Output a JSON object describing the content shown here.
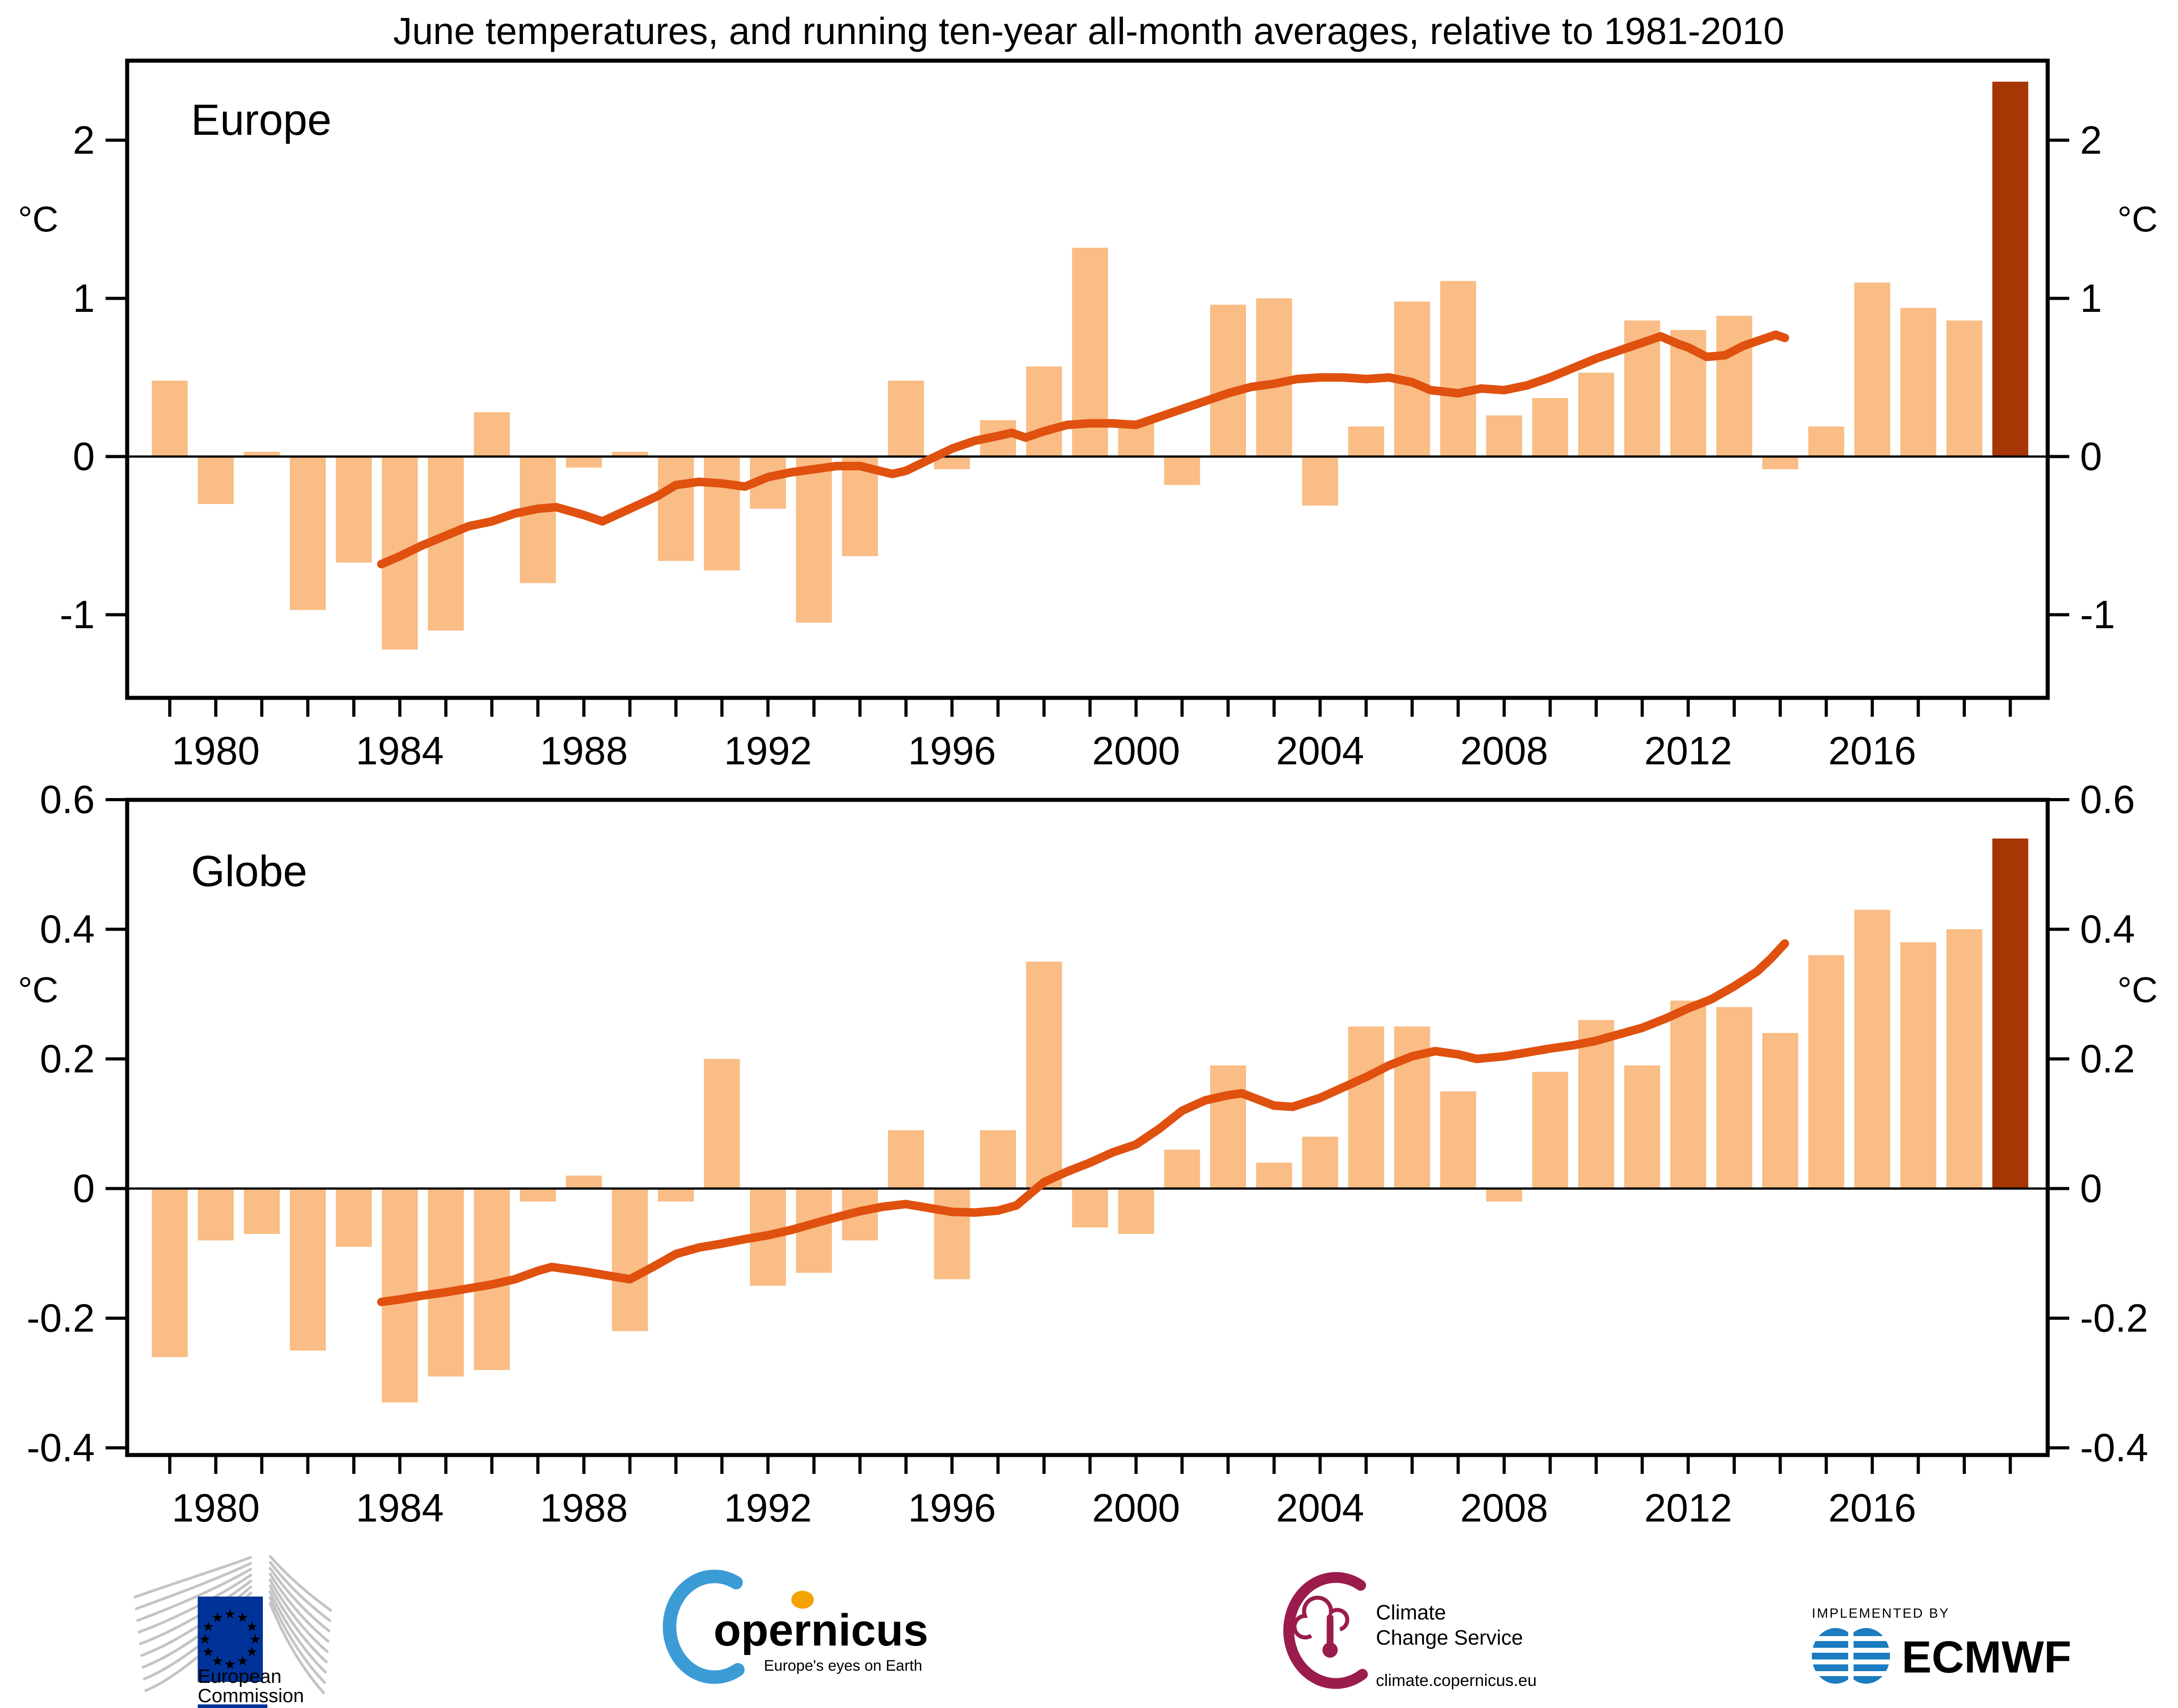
{
  "title": "June temperatures, and running ten-year all-month averages, relative to 1981-2010",
  "unit_label": "°C",
  "colors": {
    "bar": "#F9BD85",
    "running_mean_line": "#E0500F",
    "highlight_bar": "#A63604",
    "axis": "#000000",
    "ec_blue": "#003399",
    "star_yellow": "#FFCC00",
    "ec_gray": "#C4C4C4",
    "copernicus_blue": "#3B9BD5",
    "copernicus_navy": "#17375E",
    "copernicus_orange": "#F5A300",
    "ccs_maroon": "#9B1C4C",
    "ccs_gray": "#9E9E9E",
    "ecmwf_blue": "#1B7CC0"
  },
  "footer": {
    "ec": {
      "line1": "European",
      "line2": "Commission"
    },
    "copernicus": {
      "wordmark": "opernicus",
      "tagline": "Europe's eyes on Earth"
    },
    "ccs": {
      "line1": "Climate",
      "line2": "Change Service",
      "url": "climate.copernicus.eu"
    },
    "ecmwf": {
      "kicker": "IMPLEMENTED BY",
      "brand": "ECMWF"
    }
  },
  "chart_data": [
    {
      "type": "bar",
      "region": "Europe",
      "ylabel": "°C",
      "grid": false,
      "ylim": [
        -1.525,
        2.5
      ],
      "yticks": [
        2,
        1,
        0,
        -1
      ],
      "ytick_labels": [
        "2",
        "1",
        "0",
        "-1"
      ],
      "xtick_labeled_years": [
        1980,
        1984,
        1988,
        1992,
        1996,
        2000,
        2004,
        2008,
        2012,
        2016
      ],
      "years": [
        1979,
        1980,
        1981,
        1982,
        1983,
        1984,
        1985,
        1986,
        1987,
        1988,
        1989,
        1990,
        1991,
        1992,
        1993,
        1994,
        1995,
        1996,
        1997,
        1998,
        1999,
        2000,
        2001,
        2002,
        2003,
        2004,
        2005,
        2006,
        2007,
        2008,
        2009,
        2010,
        2011,
        2012,
        2013,
        2014,
        2015,
        2016,
        2017,
        2018,
        2019
      ],
      "values": [
        0.48,
        -0.3,
        0.03,
        -0.97,
        -0.67,
        -1.22,
        -1.1,
        0.28,
        -0.8,
        -0.07,
        0.03,
        -0.66,
        -0.72,
        -0.33,
        -1.05,
        -0.63,
        0.48,
        -0.08,
        0.23,
        0.57,
        1.32,
        0.23,
        -0.18,
        0.96,
        1.0,
        -0.31,
        0.19,
        0.98,
        1.11,
        0.26,
        0.37,
        0.53,
        0.86,
        0.8,
        0.89,
        -0.08,
        0.19,
        1.1,
        0.94,
        0.86,
        2.37
      ],
      "highlight_year": 2019,
      "running_mean": [
        [
          1983.6,
          -0.68
        ],
        [
          1984.0,
          -0.63
        ],
        [
          1984.5,
          -0.56
        ],
        [
          1985.0,
          -0.5
        ],
        [
          1985.5,
          -0.44
        ],
        [
          1986.0,
          -0.41
        ],
        [
          1986.5,
          -0.36
        ],
        [
          1987.0,
          -0.33
        ],
        [
          1987.4,
          -0.32
        ],
        [
          1988.0,
          -0.37
        ],
        [
          1988.4,
          -0.41
        ],
        [
          1989.0,
          -0.33
        ],
        [
          1989.6,
          -0.25
        ],
        [
          1990.0,
          -0.18
        ],
        [
          1990.5,
          -0.16
        ],
        [
          1991.0,
          -0.17
        ],
        [
          1991.5,
          -0.19
        ],
        [
          1992.0,
          -0.13
        ],
        [
          1992.5,
          -0.1
        ],
        [
          1993.0,
          -0.08
        ],
        [
          1993.5,
          -0.06
        ],
        [
          1994.0,
          -0.06
        ],
        [
          1994.7,
          -0.11
        ],
        [
          1995.0,
          -0.09
        ],
        [
          1995.5,
          -0.02
        ],
        [
          1996.0,
          0.05
        ],
        [
          1996.5,
          0.1
        ],
        [
          1997.0,
          0.13
        ],
        [
          1997.3,
          0.15
        ],
        [
          1997.6,
          0.12
        ],
        [
          1998.0,
          0.16
        ],
        [
          1998.5,
          0.2
        ],
        [
          1999.0,
          0.21
        ],
        [
          1999.5,
          0.21
        ],
        [
          2000.0,
          0.2
        ],
        [
          2000.5,
          0.25
        ],
        [
          2001.0,
          0.3
        ],
        [
          2001.5,
          0.35
        ],
        [
          2002.0,
          0.4
        ],
        [
          2002.5,
          0.44
        ],
        [
          2003.0,
          0.46
        ],
        [
          2003.5,
          0.49
        ],
        [
          2004.0,
          0.5
        ],
        [
          2004.5,
          0.5
        ],
        [
          2005.0,
          0.49
        ],
        [
          2005.5,
          0.5
        ],
        [
          2006.0,
          0.47
        ],
        [
          2006.4,
          0.42
        ],
        [
          2007.0,
          0.4
        ],
        [
          2007.5,
          0.43
        ],
        [
          2008.0,
          0.42
        ],
        [
          2008.5,
          0.45
        ],
        [
          2009.0,
          0.5
        ],
        [
          2009.5,
          0.56
        ],
        [
          2010.0,
          0.62
        ],
        [
          2010.5,
          0.67
        ],
        [
          2011.0,
          0.72
        ],
        [
          2011.4,
          0.76
        ],
        [
          2011.8,
          0.71
        ],
        [
          2012.0,
          0.69
        ],
        [
          2012.4,
          0.63
        ],
        [
          2012.8,
          0.64
        ],
        [
          2013.2,
          0.7
        ],
        [
          2013.6,
          0.74
        ],
        [
          2013.9,
          0.77
        ],
        [
          2014.1,
          0.75
        ]
      ]
    },
    {
      "type": "bar",
      "region": "Globe",
      "ylabel": "°C",
      "grid": false,
      "ylim": [
        -0.411,
        0.6
      ],
      "yticks": [
        0.6,
        0.4,
        0.2,
        0,
        -0.2,
        -0.4
      ],
      "ytick_labels": [
        "0.6",
        "0.4",
        "0.2",
        "0",
        "-0.2",
        "-0.4"
      ],
      "xtick_labeled_years": [
        1980,
        1984,
        1988,
        1992,
        1996,
        2000,
        2004,
        2008,
        2012,
        2016
      ],
      "years": [
        1979,
        1980,
        1981,
        1982,
        1983,
        1984,
        1985,
        1986,
        1987,
        1988,
        1989,
        1990,
        1991,
        1992,
        1993,
        1994,
        1995,
        1996,
        1997,
        1998,
        1999,
        2000,
        2001,
        2002,
        2003,
        2004,
        2005,
        2006,
        2007,
        2008,
        2009,
        2010,
        2011,
        2012,
        2013,
        2014,
        2015,
        2016,
        2017,
        2018,
        2019
      ],
      "values": [
        -0.26,
        -0.08,
        -0.07,
        -0.25,
        -0.09,
        -0.33,
        -0.29,
        -0.28,
        -0.02,
        0.02,
        -0.22,
        -0.02,
        0.2,
        -0.15,
        -0.13,
        -0.08,
        0.09,
        -0.14,
        0.09,
        0.35,
        -0.06,
        -0.07,
        0.06,
        0.19,
        0.04,
        0.08,
        0.25,
        0.25,
        0.15,
        -0.02,
        0.18,
        0.26,
        0.19,
        0.29,
        0.28,
        0.24,
        0.36,
        0.43,
        0.38,
        0.4,
        0.54
      ],
      "highlight_year": 2019,
      "running_mean": [
        [
          1983.6,
          -0.175
        ],
        [
          1984.0,
          -0.171
        ],
        [
          1984.5,
          -0.165
        ],
        [
          1985.0,
          -0.16
        ],
        [
          1985.5,
          -0.154
        ],
        [
          1986.0,
          -0.148
        ],
        [
          1986.5,
          -0.14
        ],
        [
          1987.0,
          -0.127
        ],
        [
          1987.3,
          -0.121
        ],
        [
          1988.0,
          -0.128
        ],
        [
          1988.5,
          -0.134
        ],
        [
          1989.0,
          -0.14
        ],
        [
          1989.5,
          -0.121
        ],
        [
          1990.0,
          -0.101
        ],
        [
          1990.5,
          -0.091
        ],
        [
          1991.0,
          -0.085
        ],
        [
          1991.5,
          -0.078
        ],
        [
          1992.0,
          -0.072
        ],
        [
          1992.5,
          -0.064
        ],
        [
          1993.0,
          -0.054
        ],
        [
          1993.5,
          -0.044
        ],
        [
          1994.0,
          -0.035
        ],
        [
          1994.5,
          -0.028
        ],
        [
          1995.0,
          -0.024
        ],
        [
          1995.5,
          -0.03
        ],
        [
          1996.0,
          -0.036
        ],
        [
          1996.5,
          -0.037
        ],
        [
          1997.0,
          -0.034
        ],
        [
          1997.4,
          -0.026
        ],
        [
          1998.0,
          0.01
        ],
        [
          1998.5,
          0.026
        ],
        [
          1999.0,
          0.04
        ],
        [
          1999.5,
          0.056
        ],
        [
          2000.0,
          0.068
        ],
        [
          2000.5,
          0.092
        ],
        [
          2001.0,
          0.12
        ],
        [
          2001.5,
          0.136
        ],
        [
          2002.0,
          0.144
        ],
        [
          2002.3,
          0.147
        ],
        [
          2002.7,
          0.136
        ],
        [
          2003.0,
          0.128
        ],
        [
          2003.4,
          0.126
        ],
        [
          2004.0,
          0.14
        ],
        [
          2004.5,
          0.156
        ],
        [
          2005.0,
          0.172
        ],
        [
          2005.5,
          0.19
        ],
        [
          2006.0,
          0.204
        ],
        [
          2006.5,
          0.212
        ],
        [
          2007.0,
          0.207
        ],
        [
          2007.4,
          0.2
        ],
        [
          2008.0,
          0.204
        ],
        [
          2008.5,
          0.21
        ],
        [
          2009.0,
          0.216
        ],
        [
          2009.5,
          0.221
        ],
        [
          2010.0,
          0.228
        ],
        [
          2010.5,
          0.238
        ],
        [
          2011.0,
          0.248
        ],
        [
          2011.5,
          0.262
        ],
        [
          2012.0,
          0.278
        ],
        [
          2012.5,
          0.292
        ],
        [
          2013.0,
          0.312
        ],
        [
          2013.5,
          0.335
        ],
        [
          2013.8,
          0.355
        ],
        [
          2014.1,
          0.378
        ]
      ]
    }
  ]
}
